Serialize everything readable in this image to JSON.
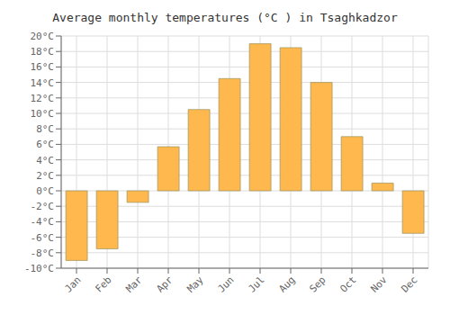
{
  "chart_data": {
    "type": "bar",
    "title": "Average monthly temperatures (°C ) in Tsaghkadzor",
    "categories": [
      "Jan",
      "Feb",
      "Mar",
      "Apr",
      "May",
      "Jun",
      "Jul",
      "Aug",
      "Sep",
      "Oct",
      "Nov",
      "Dec"
    ],
    "values": [
      -9,
      -7.5,
      -1.5,
      5.7,
      10.5,
      14.5,
      19,
      18.5,
      14,
      7,
      1,
      -5.5
    ],
    "color": "#FFB84D",
    "ylim": [
      -10,
      20
    ],
    "yticks": [
      {
        "value": -10,
        "label": "-10°C"
      },
      {
        "value": -8,
        "label": "-8°C"
      },
      {
        "value": -6,
        "label": "-6°C"
      },
      {
        "value": -4,
        "label": "-4°C"
      },
      {
        "value": -2,
        "label": "-2°C"
      },
      {
        "value": 0,
        "label": "0°C"
      },
      {
        "value": 2,
        "label": "2°C"
      },
      {
        "value": 4,
        "label": "4°C"
      },
      {
        "value": 6,
        "label": "6°C"
      },
      {
        "value": 8,
        "label": "8°C"
      },
      {
        "value": 10,
        "label": "10°C"
      },
      {
        "value": 12,
        "label": "12°C"
      },
      {
        "value": 14,
        "label": "14°C"
      },
      {
        "value": 16,
        "label": "16°C"
      },
      {
        "value": 18,
        "label": "18°C"
      },
      {
        "value": 20,
        "label": "20°C"
      }
    ],
    "grid": true
  }
}
